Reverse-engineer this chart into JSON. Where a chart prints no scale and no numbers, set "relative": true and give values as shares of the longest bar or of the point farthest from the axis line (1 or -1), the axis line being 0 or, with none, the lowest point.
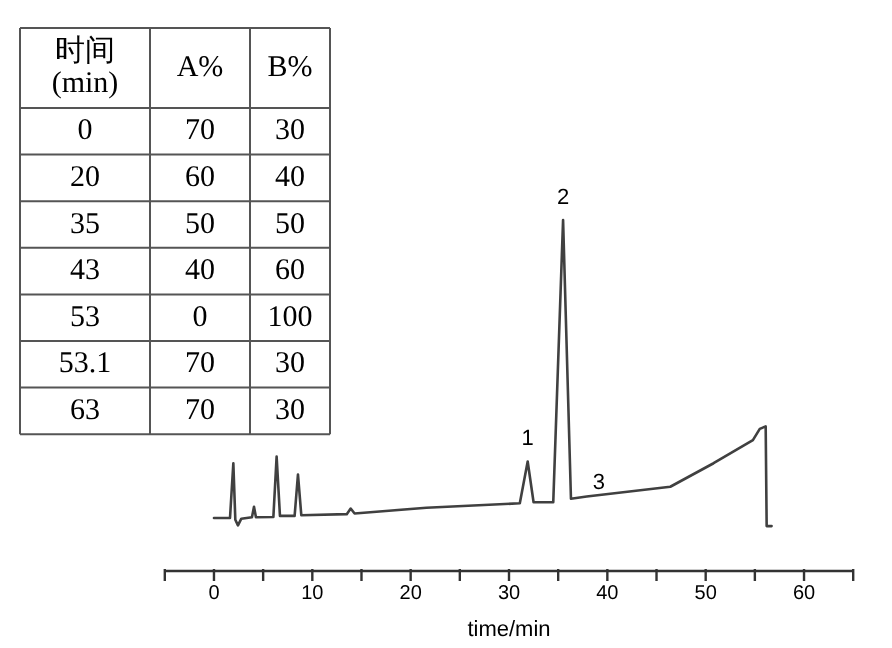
{
  "chart_data": [
    {
      "type": "heatmap",
      "data_labels": true,
      "ylabel": "时间\n(min)",
      "categories": [
        "A%",
        "B%"
      ],
      "y_categories": [
        "0",
        "20",
        "35",
        "43",
        "53",
        "53.1",
        "63"
      ],
      "cells": [
        [
          70,
          30
        ],
        [
          60,
          40
        ],
        [
          50,
          50
        ],
        [
          40,
          60
        ],
        [
          0,
          100
        ],
        [
          70,
          30
        ],
        [
          70,
          30
        ]
      ]
    },
    {
      "type": "line",
      "relative": true,
      "xlabel": "time/min",
      "xlim": [
        -5,
        65
      ],
      "xticks": [
        0,
        {
          "value": 5,
          "label": null
        },
        10,
        {
          "value": 15,
          "label": null
        },
        20,
        {
          "value": 25,
          "label": null
        },
        30,
        {
          "value": 35,
          "label": null
        },
        40,
        {
          "value": 45,
          "label": null
        },
        50,
        {
          "value": 55,
          "label": null
        },
        60,
        {
          "value": 65,
          "label": null
        },
        {
          "value": -5,
          "label": null
        }
      ],
      "series": [
        {
          "color": "#404040",
          "x": [
            0.0,
            1.63,
            1.97,
            2.17,
            2.44,
            2.78,
            3.86,
            4.07,
            4.27,
            6.04,
            6.37,
            6.71,
            8.2,
            8.54,
            8.88,
            13.5,
            13.9,
            14.3,
            21.6,
            31.1,
            31.9,
            32.5,
            34.5,
            35.5,
            36.3,
            37.9,
            46.4,
            50.8,
            54.8,
            55.5,
            56.1,
            56.2,
            56.7
          ],
          "values": [
            0.151,
            0.151,
            0.307,
            0.146,
            0.13,
            0.149,
            0.153,
            0.183,
            0.153,
            0.154,
            0.326,
            0.157,
            0.157,
            0.275,
            0.159,
            0.162,
            0.178,
            0.164,
            0.18,
            0.193,
            0.312,
            0.196,
            0.196,
            1.0,
            0.206,
            0.212,
            0.24,
            0.307,
            0.373,
            0.405,
            0.412,
            0.128,
            0.128
          ]
        }
      ],
      "annotations": [
        {
          "text": "1",
          "x": 31.9,
          "y": 0.312
        },
        {
          "text": "2",
          "x": 35.5,
          "y": 1.0
        },
        {
          "text": "3",
          "x": 37.9,
          "y": 0.212
        }
      ]
    }
  ]
}
